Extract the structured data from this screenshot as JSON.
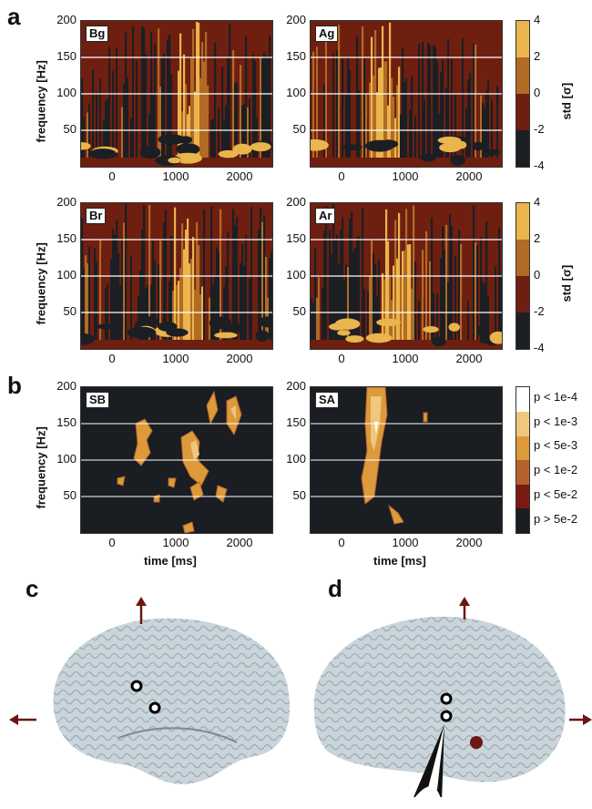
{
  "panel_labels": {
    "a": "a",
    "b": "b",
    "c": "c",
    "d": "d"
  },
  "axes": {
    "ylabel": "frequency [Hz]",
    "xlabel": "time [ms]",
    "yticks": [
      "200",
      "150",
      "100",
      "50"
    ],
    "xticks": [
      "0",
      "1000",
      "2000"
    ]
  },
  "spectrograms": [
    {
      "tag": "Bg"
    },
    {
      "tag": "Ag"
    },
    {
      "tag": "Br"
    },
    {
      "tag": "Ar"
    }
  ],
  "significance": [
    {
      "tag": "SB"
    },
    {
      "tag": "SA"
    }
  ],
  "std_colorbar": {
    "label": "std [σ]",
    "ticks": [
      "4",
      "2",
      "0",
      "-2",
      "-4"
    ],
    "colors": [
      "#e9b54c",
      "#b26a25",
      "#6e1f10",
      "#1b1f24"
    ]
  },
  "p_colorbar": {
    "ticks": [
      "p < 1e-4",
      "p < 1e-3",
      "p < 5e-3",
      "p < 1e-2",
      "p < 5e-2",
      "p > 5e-2"
    ],
    "colors": [
      "#ffffff",
      "#f0c77e",
      "#dc9a3b",
      "#b5632a",
      "#7a1b12",
      "#1a1d22"
    ]
  },
  "brain_colors": {
    "surface": "#c9d4db",
    "arrow": "#6b1712"
  },
  "chart_data": [
    {
      "type": "heatmap",
      "title": "Bg",
      "xlabel": "",
      "ylabel": "frequency [Hz]",
      "xlim": [
        -500,
        2500
      ],
      "ylim": [
        0,
        200
      ]
    },
    {
      "type": "heatmap",
      "title": "Ag",
      "xlabel": "",
      "ylabel": "",
      "xlim": [
        -500,
        2500
      ],
      "ylim": [
        0,
        200
      ]
    },
    {
      "type": "heatmap",
      "title": "Br",
      "xlabel": "",
      "ylabel": "frequency [Hz]",
      "xlim": [
        -500,
        2500
      ],
      "ylim": [
        0,
        200
      ]
    },
    {
      "type": "heatmap",
      "title": "Ar",
      "xlabel": "",
      "ylabel": "",
      "xlim": [
        -500,
        2500
      ],
      "ylim": [
        0,
        200
      ]
    },
    {
      "type": "heatmap",
      "title": "SB",
      "xlabel": "time [ms]",
      "ylabel": "frequency [Hz]",
      "xlim": [
        -500,
        2500
      ],
      "ylim": [
        0,
        200
      ]
    },
    {
      "type": "heatmap",
      "title": "SA",
      "xlabel": "time [ms]",
      "ylabel": "",
      "xlim": [
        -500,
        2500
      ],
      "ylim": [
        0,
        200
      ]
    }
  ]
}
